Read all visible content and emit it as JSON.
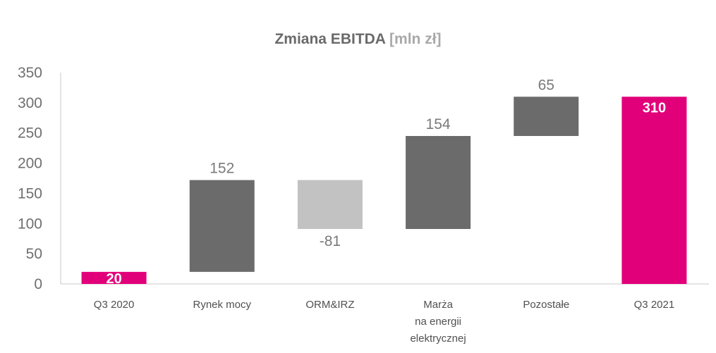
{
  "chart_data": {
    "type": "bar",
    "subtype": "waterfall",
    "title": "Zmiana EBITDA",
    "title_unit": "[mln zł]",
    "categories": [
      [
        "Q3 2020"
      ],
      [
        "Rynek mocy"
      ],
      [
        "ORM&IRZ"
      ],
      [
        "Marża",
        "na energii",
        "elektrycznej"
      ],
      [
        "Pozostałe"
      ],
      [
        "Q3 2021"
      ]
    ],
    "values": [
      20,
      152,
      -81,
      154,
      65,
      310
    ],
    "value_labels": [
      "20",
      "152",
      "-81",
      "154",
      "65",
      "310"
    ],
    "bar_kinds": [
      "total",
      "increase",
      "decrease",
      "increase",
      "increase",
      "total"
    ],
    "ylim": [
      0,
      350
    ],
    "yticks": [
      "0",
      "50",
      "100",
      "150",
      "200",
      "250",
      "300",
      "350"
    ],
    "xlabel": "",
    "ylabel": "",
    "grid": false,
    "legend": "none",
    "colors": {
      "total": "#e2007a",
      "increase": "#6b6b6b",
      "decrease": "#c2c2c2",
      "axis": "#c8c8c8"
    }
  }
}
